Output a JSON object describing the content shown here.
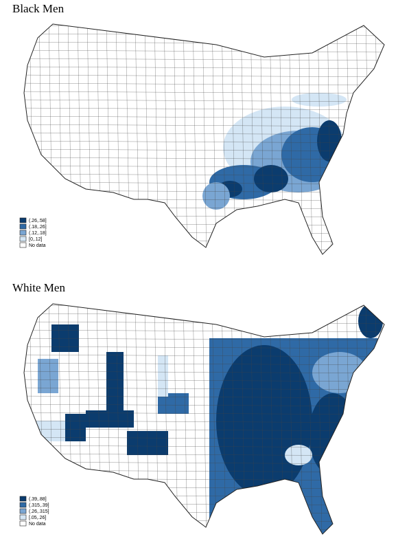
{
  "maps": [
    {
      "title": "Black Men",
      "legend": [
        {
          "label": "(.26,.58]",
          "color": "#0b3c6e"
        },
        {
          "label": "(.18,.26]",
          "color": "#2f6aa6"
        },
        {
          "label": "(.12,.18]",
          "color": "#7aa6d3"
        },
        {
          "label": "[0,.12]",
          "color": "#d4e6f5"
        },
        {
          "label": "No data",
          "color": "#ffffff"
        }
      ]
    },
    {
      "title": "White Men",
      "legend": [
        {
          "label": "(.39,.88]",
          "color": "#0b3c6e"
        },
        {
          "label": "(.315,.39]",
          "color": "#2f6aa6"
        },
        {
          "label": "(.26,.315]",
          "color": "#7aa6d3"
        },
        {
          "label": "[.05,.26]",
          "color": "#d4e6f5"
        },
        {
          "label": "No data",
          "color": "#ffffff"
        }
      ]
    }
  ]
}
